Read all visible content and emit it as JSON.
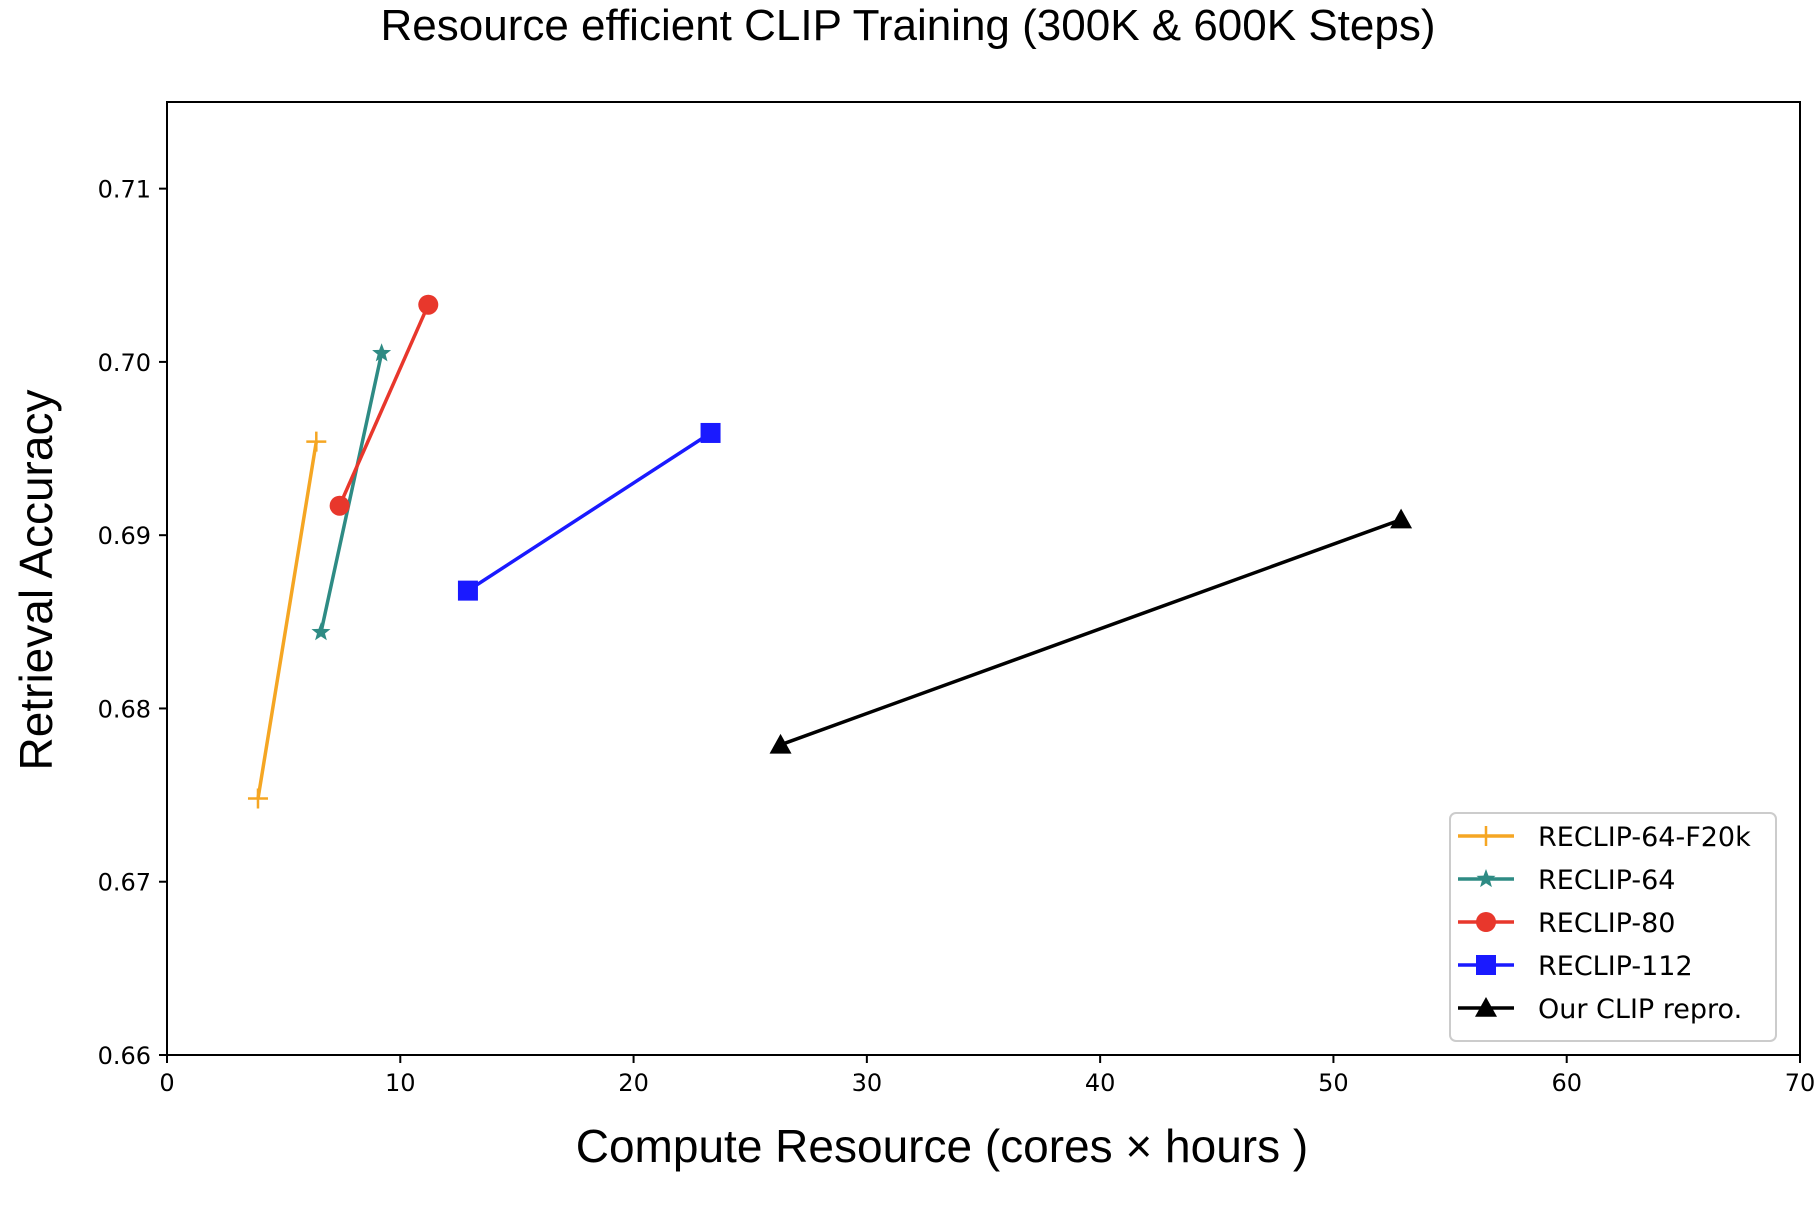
{
  "chart_data": {
    "type": "line",
    "title": "Resource efficient CLIP Training (300K & 600K Steps)",
    "xlabel": "Compute Resource (cores × hours )",
    "ylabel": "Retrieval Accuracy",
    "xlim": [
      0,
      70
    ],
    "ylim": [
      0.66,
      0.715
    ],
    "x_ticks": [
      0,
      10,
      20,
      30,
      40,
      50,
      60,
      70
    ],
    "x_tick_labels": [
      "0",
      "10",
      "20",
      "30",
      "40",
      "50",
      "60",
      "70"
    ],
    "y_ticks": [
      0.66,
      0.67,
      0.68,
      0.69,
      0.7,
      0.71
    ],
    "y_tick_labels": [
      "0.66",
      "0.67",
      "0.68",
      "0.69",
      "0.70",
      "0.71"
    ],
    "grid": false,
    "legend_position": "lower-right",
    "series": [
      {
        "name": "RECLIP-64-F20k",
        "color": "#f5a623",
        "marker": "plus",
        "x": [
          3.9,
          6.4
        ],
        "y": [
          0.6748,
          0.6954
        ]
      },
      {
        "name": "RECLIP-64",
        "color": "#2e8b84",
        "marker": "star",
        "x": [
          6.6,
          9.2
        ],
        "y": [
          0.6844,
          0.7005
        ]
      },
      {
        "name": "RECLIP-80",
        "color": "#e8372c",
        "marker": "circle",
        "x": [
          7.4,
          11.2
        ],
        "y": [
          0.6917,
          0.7033
        ]
      },
      {
        "name": "RECLIP-112",
        "color": "#1a1aff",
        "marker": "square",
        "x": [
          12.9,
          23.3
        ],
        "y": [
          0.6868,
          0.6959
        ]
      },
      {
        "name": "Our CLIP repro.",
        "color": "#000000",
        "marker": "triangle",
        "x": [
          26.3,
          52.9
        ],
        "y": [
          0.6779,
          0.6909
        ]
      }
    ]
  }
}
